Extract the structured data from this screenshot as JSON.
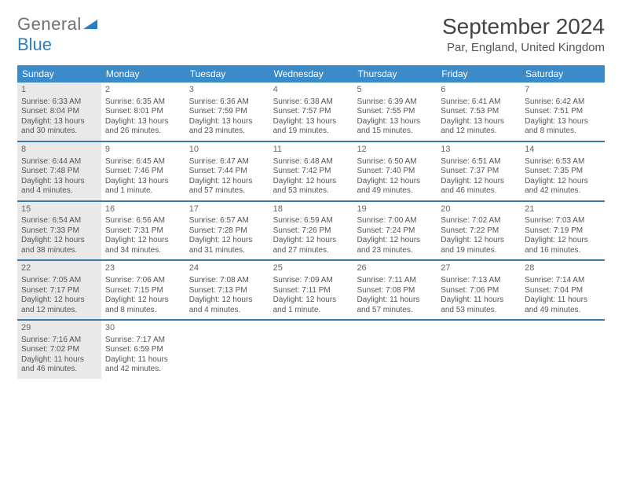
{
  "logo": {
    "word1": "General",
    "word2": "Blue"
  },
  "title": "September 2024",
  "location": "Par, England, United Kingdom",
  "colors": {
    "header_bg": "#3b8bc9",
    "header_text": "#ffffff",
    "week_border": "#3b7aa8",
    "shaded_bg": "#e9e9e9",
    "text": "#555555"
  },
  "days_of_week": [
    "Sunday",
    "Monday",
    "Tuesday",
    "Wednesday",
    "Thursday",
    "Friday",
    "Saturday"
  ],
  "weeks": [
    [
      {
        "day": "1",
        "shaded": true,
        "sunrise": "Sunrise: 6:33 AM",
        "sunset": "Sunset: 8:04 PM",
        "daylight": "Daylight: 13 hours and 30 minutes."
      },
      {
        "day": "2",
        "sunrise": "Sunrise: 6:35 AM",
        "sunset": "Sunset: 8:01 PM",
        "daylight": "Daylight: 13 hours and 26 minutes."
      },
      {
        "day": "3",
        "sunrise": "Sunrise: 6:36 AM",
        "sunset": "Sunset: 7:59 PM",
        "daylight": "Daylight: 13 hours and 23 minutes."
      },
      {
        "day": "4",
        "sunrise": "Sunrise: 6:38 AM",
        "sunset": "Sunset: 7:57 PM",
        "daylight": "Daylight: 13 hours and 19 minutes."
      },
      {
        "day": "5",
        "sunrise": "Sunrise: 6:39 AM",
        "sunset": "Sunset: 7:55 PM",
        "daylight": "Daylight: 13 hours and 15 minutes."
      },
      {
        "day": "6",
        "sunrise": "Sunrise: 6:41 AM",
        "sunset": "Sunset: 7:53 PM",
        "daylight": "Daylight: 13 hours and 12 minutes."
      },
      {
        "day": "7",
        "sunrise": "Sunrise: 6:42 AM",
        "sunset": "Sunset: 7:51 PM",
        "daylight": "Daylight: 13 hours and 8 minutes."
      }
    ],
    [
      {
        "day": "8",
        "shaded": true,
        "sunrise": "Sunrise: 6:44 AM",
        "sunset": "Sunset: 7:48 PM",
        "daylight": "Daylight: 13 hours and 4 minutes."
      },
      {
        "day": "9",
        "sunrise": "Sunrise: 6:45 AM",
        "sunset": "Sunset: 7:46 PM",
        "daylight": "Daylight: 13 hours and 1 minute."
      },
      {
        "day": "10",
        "sunrise": "Sunrise: 6:47 AM",
        "sunset": "Sunset: 7:44 PM",
        "daylight": "Daylight: 12 hours and 57 minutes."
      },
      {
        "day": "11",
        "sunrise": "Sunrise: 6:48 AM",
        "sunset": "Sunset: 7:42 PM",
        "daylight": "Daylight: 12 hours and 53 minutes."
      },
      {
        "day": "12",
        "sunrise": "Sunrise: 6:50 AM",
        "sunset": "Sunset: 7:40 PM",
        "daylight": "Daylight: 12 hours and 49 minutes."
      },
      {
        "day": "13",
        "sunrise": "Sunrise: 6:51 AM",
        "sunset": "Sunset: 7:37 PM",
        "daylight": "Daylight: 12 hours and 46 minutes."
      },
      {
        "day": "14",
        "sunrise": "Sunrise: 6:53 AM",
        "sunset": "Sunset: 7:35 PM",
        "daylight": "Daylight: 12 hours and 42 minutes."
      }
    ],
    [
      {
        "day": "15",
        "shaded": true,
        "sunrise": "Sunrise: 6:54 AM",
        "sunset": "Sunset: 7:33 PM",
        "daylight": "Daylight: 12 hours and 38 minutes."
      },
      {
        "day": "16",
        "sunrise": "Sunrise: 6:56 AM",
        "sunset": "Sunset: 7:31 PM",
        "daylight": "Daylight: 12 hours and 34 minutes."
      },
      {
        "day": "17",
        "sunrise": "Sunrise: 6:57 AM",
        "sunset": "Sunset: 7:28 PM",
        "daylight": "Daylight: 12 hours and 31 minutes."
      },
      {
        "day": "18",
        "sunrise": "Sunrise: 6:59 AM",
        "sunset": "Sunset: 7:26 PM",
        "daylight": "Daylight: 12 hours and 27 minutes."
      },
      {
        "day": "19",
        "sunrise": "Sunrise: 7:00 AM",
        "sunset": "Sunset: 7:24 PM",
        "daylight": "Daylight: 12 hours and 23 minutes."
      },
      {
        "day": "20",
        "sunrise": "Sunrise: 7:02 AM",
        "sunset": "Sunset: 7:22 PM",
        "daylight": "Daylight: 12 hours and 19 minutes."
      },
      {
        "day": "21",
        "sunrise": "Sunrise: 7:03 AM",
        "sunset": "Sunset: 7:19 PM",
        "daylight": "Daylight: 12 hours and 16 minutes."
      }
    ],
    [
      {
        "day": "22",
        "shaded": true,
        "sunrise": "Sunrise: 7:05 AM",
        "sunset": "Sunset: 7:17 PM",
        "daylight": "Daylight: 12 hours and 12 minutes."
      },
      {
        "day": "23",
        "sunrise": "Sunrise: 7:06 AM",
        "sunset": "Sunset: 7:15 PM",
        "daylight": "Daylight: 12 hours and 8 minutes."
      },
      {
        "day": "24",
        "sunrise": "Sunrise: 7:08 AM",
        "sunset": "Sunset: 7:13 PM",
        "daylight": "Daylight: 12 hours and 4 minutes."
      },
      {
        "day": "25",
        "sunrise": "Sunrise: 7:09 AM",
        "sunset": "Sunset: 7:11 PM",
        "daylight": "Daylight: 12 hours and 1 minute."
      },
      {
        "day": "26",
        "sunrise": "Sunrise: 7:11 AM",
        "sunset": "Sunset: 7:08 PM",
        "daylight": "Daylight: 11 hours and 57 minutes."
      },
      {
        "day": "27",
        "sunrise": "Sunrise: 7:13 AM",
        "sunset": "Sunset: 7:06 PM",
        "daylight": "Daylight: 11 hours and 53 minutes."
      },
      {
        "day": "28",
        "sunrise": "Sunrise: 7:14 AM",
        "sunset": "Sunset: 7:04 PM",
        "daylight": "Daylight: 11 hours and 49 minutes."
      }
    ],
    [
      {
        "day": "29",
        "shaded": true,
        "sunrise": "Sunrise: 7:16 AM",
        "sunset": "Sunset: 7:02 PM",
        "daylight": "Daylight: 11 hours and 46 minutes."
      },
      {
        "day": "30",
        "sunrise": "Sunrise: 7:17 AM",
        "sunset": "Sunset: 6:59 PM",
        "daylight": "Daylight: 11 hours and 42 minutes."
      },
      {
        "empty": true
      },
      {
        "empty": true
      },
      {
        "empty": true
      },
      {
        "empty": true
      },
      {
        "empty": true
      }
    ]
  ]
}
